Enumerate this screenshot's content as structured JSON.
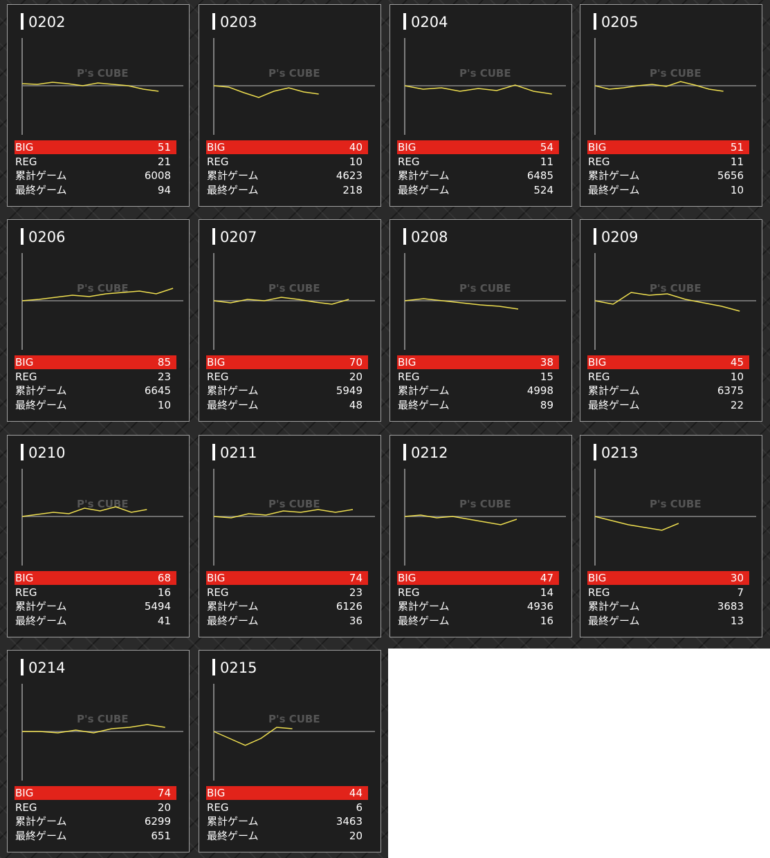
{
  "labels": [
    "BIG",
    "REG",
    "累計ゲーム",
    "最終ゲーム"
  ],
  "watermark": "P's CUBE",
  "cards": [
    {
      "id": "0202",
      "big": 51,
      "reg": 21,
      "total": 6008,
      "last": 94,
      "graph": [
        3,
        2,
        5,
        3,
        0,
        4,
        2,
        0,
        -5,
        -8
      ]
    },
    {
      "id": "0203",
      "big": 40,
      "reg": 10,
      "total": 4623,
      "last": 218,
      "graph": [
        0,
        -2,
        -10,
        -17,
        -8,
        -3,
        -9,
        -12
      ]
    },
    {
      "id": "0204",
      "big": 54,
      "reg": 11,
      "total": 6485,
      "last": 524,
      "graph": [
        0,
        -5,
        -3,
        -8,
        -4,
        -7,
        1,
        -8,
        -12
      ]
    },
    {
      "id": "0205",
      "big": 51,
      "reg": 11,
      "total": 5656,
      "last": 10,
      "graph": [
        0,
        -5,
        -3,
        0,
        2,
        -1,
        6,
        1,
        -5,
        -8
      ]
    },
    {
      "id": "0206",
      "big": 85,
      "reg": 23,
      "total": 6645,
      "last": 10,
      "graph": [
        0,
        2,
        5,
        8,
        6,
        10,
        12,
        14,
        10,
        18
      ]
    },
    {
      "id": "0207",
      "big": 70,
      "reg": 20,
      "total": 5949,
      "last": 48,
      "graph": [
        0,
        -3,
        2,
        0,
        5,
        2,
        -2,
        -5,
        2
      ]
    },
    {
      "id": "0208",
      "big": 38,
      "reg": 15,
      "total": 4998,
      "last": 89,
      "graph": [
        0,
        3,
        0,
        -3,
        -6,
        -8,
        -12
      ]
    },
    {
      "id": "0209",
      "big": 45,
      "reg": 10,
      "total": 6375,
      "last": 22,
      "graph": [
        0,
        -5,
        12,
        8,
        10,
        2,
        -3,
        -8,
        -15
      ]
    },
    {
      "id": "0210",
      "big": 68,
      "reg": 16,
      "total": 5494,
      "last": 41,
      "graph": [
        0,
        3,
        6,
        4,
        12,
        8,
        14,
        6,
        10
      ]
    },
    {
      "id": "0211",
      "big": 74,
      "reg": 23,
      "total": 6126,
      "last": 36,
      "graph": [
        0,
        -2,
        4,
        2,
        8,
        6,
        10,
        6,
        10
      ]
    },
    {
      "id": "0212",
      "big": 47,
      "reg": 14,
      "total": 4936,
      "last": 16,
      "graph": [
        0,
        2,
        -2,
        0,
        -4,
        -8,
        -12,
        -4
      ]
    },
    {
      "id": "0213",
      "big": 30,
      "reg": 7,
      "total": 3683,
      "last": 13,
      "graph": [
        0,
        -6,
        -12,
        -16,
        -20,
        -10
      ]
    },
    {
      "id": "0214",
      "big": 74,
      "reg": 20,
      "total": 6299,
      "last": 651,
      "graph": [
        0,
        0,
        -2,
        2,
        -2,
        4,
        6,
        10,
        6
      ]
    },
    {
      "id": "0215",
      "big": 44,
      "reg": 6,
      "total": 3463,
      "last": 20,
      "graph": [
        0,
        -10,
        -20,
        -10,
        6,
        4
      ]
    }
  ]
}
